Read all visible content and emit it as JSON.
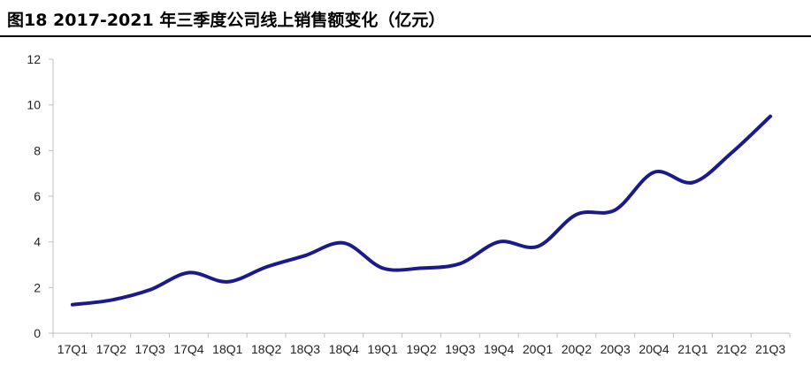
{
  "title": "图18 2017-2021 年三季度公司线上销售额变化（亿元）",
  "chart_data": {
    "type": "line",
    "title": "图18 2017-2021 年三季度公司线上销售额变化（亿元）",
    "xlabel": "",
    "ylabel": "",
    "categories": [
      "17Q1",
      "17Q2",
      "17Q3",
      "17Q4",
      "18Q1",
      "18Q2",
      "18Q3",
      "18Q4",
      "19Q1",
      "19Q2",
      "19Q3",
      "19Q4",
      "20Q1",
      "20Q2",
      "20Q3",
      "20Q4",
      "21Q1",
      "21Q2",
      "21Q3"
    ],
    "series": [
      {
        "values": [
          1.25,
          1.45,
          1.9,
          2.65,
          2.25,
          2.9,
          3.4,
          3.95,
          2.85,
          2.85,
          3.05,
          4.0,
          3.8,
          5.2,
          5.4,
          7.05,
          6.6,
          7.9,
          9.5
        ]
      }
    ],
    "ylim": [
      0,
      12
    ],
    "yticks": [
      0,
      2,
      4,
      6,
      8,
      10,
      12
    ],
    "grid": false,
    "legend": "none",
    "line_color": "#1a1a8c",
    "axis_color": "#bfbfbf"
  }
}
